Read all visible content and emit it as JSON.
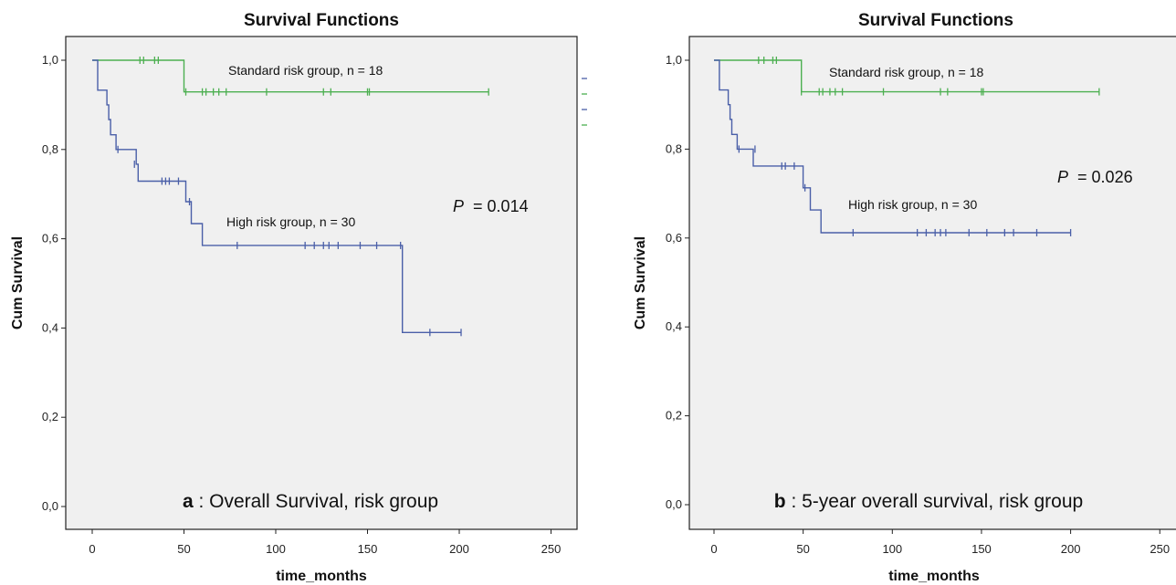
{
  "figure_panels": [
    {
      "title": "Survival Functions",
      "ylabel": "Cum Survival",
      "xlabel": "time_months",
      "std_label": "Standard risk group, n = 18",
      "high_label": "High risk group, n = 30",
      "p_label": "P",
      "p_value_text": "= 0.014",
      "caption_letter": "a",
      "caption_text": ": Overall Survival, risk group"
    },
    {
      "title": "Survival Functions",
      "ylabel": "Cum Survival",
      "xlabel": "time_months",
      "std_label": "Standard risk group, n = 18",
      "high_label": "High risk group, n = 30",
      "p_label": "P",
      "p_value_text": "= 0.026",
      "caption_letter": "b",
      "caption_text": ": 5-year overall survival, risk group"
    }
  ],
  "chart_data": [
    {
      "type": "line",
      "subtype": "kaplan-meier step",
      "title": "Survival Functions",
      "xlabel": "time_months",
      "ylabel": "Cum Survival",
      "xlim": [
        -10,
        260
      ],
      "ylim": [
        -0.02,
        1.05
      ],
      "x_ticks": [
        0,
        50,
        100,
        150,
        200,
        250
      ],
      "x_tick_labels": [
        "0",
        "50",
        "100",
        "150",
        "200",
        "250"
      ],
      "y_ticks": [
        0.0,
        0.2,
        0.4,
        0.6,
        0.8,
        1.0
      ],
      "y_tick_labels": [
        "0,0",
        "0,2",
        "0,4",
        "0,6",
        "0,8",
        "1,0"
      ],
      "series": [
        {
          "name": "Standard risk group, n = 18",
          "color": "#4caf50",
          "steps": [
            [
              0,
              1.0
            ],
            [
              50,
              1.0
            ],
            [
              50,
              0.929
            ],
            [
              216,
              0.929
            ]
          ],
          "censored": [
            [
              26,
              1.0
            ],
            [
              28,
              1.0
            ],
            [
              34,
              1.0
            ],
            [
              36,
              1.0
            ],
            [
              51,
              0.929
            ],
            [
              60,
              0.929
            ],
            [
              62,
              0.929
            ],
            [
              66,
              0.929
            ],
            [
              69,
              0.929
            ],
            [
              73,
              0.929
            ],
            [
              95,
              0.929
            ],
            [
              126,
              0.929
            ],
            [
              130,
              0.929
            ],
            [
              150,
              0.929
            ],
            [
              151,
              0.929
            ],
            [
              216,
              0.929
            ]
          ]
        },
        {
          "name": "High risk group, n = 30",
          "color": "#4a5fa8",
          "steps": [
            [
              0,
              1.0
            ],
            [
              3,
              1.0
            ],
            [
              3,
              0.933
            ],
            [
              8,
              0.933
            ],
            [
              8,
              0.9
            ],
            [
              9,
              0.9
            ],
            [
              9,
              0.867
            ],
            [
              10,
              0.867
            ],
            [
              10,
              0.833
            ],
            [
              13,
              0.833
            ],
            [
              13,
              0.8
            ],
            [
              24,
              0.8
            ],
            [
              24,
              0.767
            ],
            [
              25,
              0.767
            ],
            [
              25,
              0.729
            ],
            [
              51,
              0.729
            ],
            [
              51,
              0.683
            ],
            [
              54,
              0.683
            ],
            [
              54,
              0.634
            ],
            [
              60,
              0.634
            ],
            [
              60,
              0.585
            ],
            [
              169,
              0.585
            ],
            [
              169,
              0.39
            ],
            [
              201,
              0.39
            ]
          ],
          "censored": [
            [
              14,
              0.8
            ],
            [
              23,
              0.767
            ],
            [
              38,
              0.729
            ],
            [
              40,
              0.729
            ],
            [
              42,
              0.729
            ],
            [
              47,
              0.729
            ],
            [
              53,
              0.683
            ],
            [
              79,
              0.585
            ],
            [
              116,
              0.585
            ],
            [
              121,
              0.585
            ],
            [
              126,
              0.585
            ],
            [
              129,
              0.585
            ],
            [
              134,
              0.585
            ],
            [
              146,
              0.585
            ],
            [
              155,
              0.585
            ],
            [
              168,
              0.585
            ],
            [
              184,
              0.39
            ],
            [
              201,
              0.39
            ]
          ]
        }
      ],
      "p_value": 0.014,
      "caption": "a: Overall Survival, risk group"
    },
    {
      "type": "line",
      "subtype": "kaplan-meier step",
      "title": "Survival Functions",
      "xlabel": "time_months",
      "ylabel": "Cum Survival",
      "xlim": [
        -10,
        260
      ],
      "ylim": [
        -0.02,
        1.05
      ],
      "x_ticks": [
        0,
        50,
        100,
        150,
        200,
        250
      ],
      "x_tick_labels": [
        "0",
        "50",
        "100",
        "150",
        "200",
        "250"
      ],
      "y_ticks": [
        0.0,
        0.2,
        0.4,
        0.6,
        0.8,
        1.0
      ],
      "y_tick_labels": [
        "0,0",
        "0,2",
        "0,4",
        "0,6",
        "0,8",
        "1,0"
      ],
      "series": [
        {
          "name": "Standard risk group, n = 18",
          "color": "#4caf50",
          "steps": [
            [
              0,
              1.0
            ],
            [
              49,
              1.0
            ],
            [
              49,
              0.929
            ],
            [
              216,
              0.929
            ]
          ],
          "censored": [
            [
              25,
              1.0
            ],
            [
              28,
              1.0
            ],
            [
              33,
              1.0
            ],
            [
              35,
              1.0
            ],
            [
              49,
              0.929
            ],
            [
              59,
              0.929
            ],
            [
              61,
              0.929
            ],
            [
              65,
              0.929
            ],
            [
              68,
              0.929
            ],
            [
              72,
              0.929
            ],
            [
              95,
              0.929
            ],
            [
              127,
              0.929
            ],
            [
              131,
              0.929
            ],
            [
              150,
              0.929
            ],
            [
              151,
              0.929
            ],
            [
              216,
              0.929
            ]
          ]
        },
        {
          "name": "High risk group, n = 30",
          "color": "#4a5fa8",
          "steps": [
            [
              0,
              1.0
            ],
            [
              3,
              1.0
            ],
            [
              3,
              0.933
            ],
            [
              8,
              0.933
            ],
            [
              8,
              0.9
            ],
            [
              9,
              0.9
            ],
            [
              9,
              0.867
            ],
            [
              10,
              0.867
            ],
            [
              10,
              0.833
            ],
            [
              13,
              0.833
            ],
            [
              13,
              0.8
            ],
            [
              22,
              0.8
            ],
            [
              22,
              0.762
            ],
            [
              50,
              0.762
            ],
            [
              50,
              0.713
            ],
            [
              54,
              0.713
            ],
            [
              54,
              0.663
            ],
            [
              60,
              0.663
            ],
            [
              60,
              0.612
            ],
            [
              200,
              0.612
            ]
          ],
          "censored": [
            [
              14,
              0.8
            ],
            [
              23,
              0.8
            ],
            [
              38,
              0.762
            ],
            [
              40,
              0.762
            ],
            [
              45,
              0.762
            ],
            [
              51,
              0.713
            ],
            [
              78,
              0.612
            ],
            [
              114,
              0.612
            ],
            [
              119,
              0.612
            ],
            [
              124,
              0.612
            ],
            [
              127,
              0.612
            ],
            [
              130,
              0.612
            ],
            [
              143,
              0.612
            ],
            [
              153,
              0.612
            ],
            [
              163,
              0.612
            ],
            [
              168,
              0.612
            ],
            [
              181,
              0.612
            ],
            [
              200,
              0.612
            ]
          ]
        }
      ],
      "p_value": 0.026,
      "caption": "b: 5-year overall survival, risk group"
    }
  ]
}
